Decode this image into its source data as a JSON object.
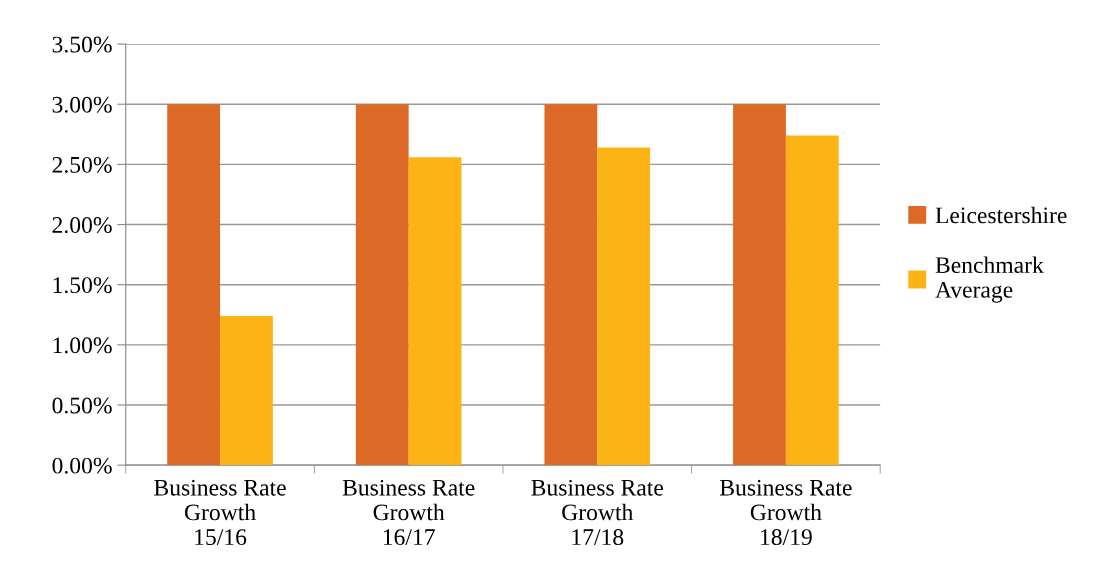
{
  "chart_data": {
    "type": "bar",
    "categories": [
      "Business Rate\nGrowth\n15/16",
      "Business Rate\nGrowth\n16/17",
      "Business Rate\nGrowth\n17/18",
      "Business Rate\nGrowth\n18/19"
    ],
    "series": [
      {
        "name": "Leicestershire",
        "color": "#dd6a27",
        "values": [
          3.0,
          3.0,
          3.0,
          3.0
        ]
      },
      {
        "name": "Benchmark\nAverage",
        "color": "#fbb316",
        "values": [
          1.24,
          2.56,
          2.64,
          2.74
        ]
      }
    ],
    "ylim": [
      0,
      3.5
    ],
    "yticks": [
      {
        "value": 0,
        "label": "0.00%"
      },
      {
        "value": 0.5,
        "label": "0.50%"
      },
      {
        "value": 1.0,
        "label": "1.00%"
      },
      {
        "value": 1.5,
        "label": "1.50%"
      },
      {
        "value": 2.0,
        "label": "2.00%"
      },
      {
        "value": 2.5,
        "label": "2.50%"
      },
      {
        "value": 3.0,
        "label": "3.00%"
      },
      {
        "value": 3.5,
        "label": "3.50%"
      }
    ],
    "grid": "y",
    "legend": "right"
  }
}
